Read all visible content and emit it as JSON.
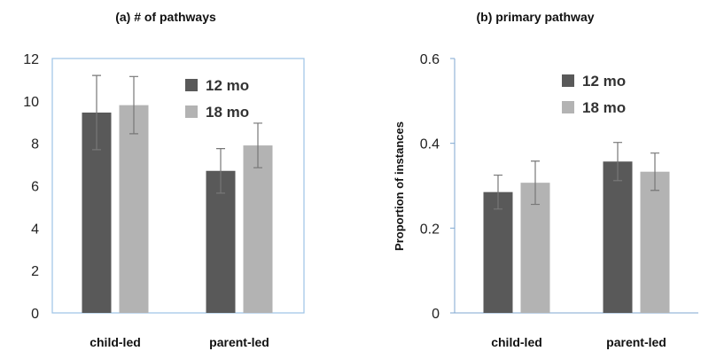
{
  "chart_data": [
    {
      "type": "bar",
      "title": "(a) # of pathways",
      "xlabel": "",
      "ylabel": "",
      "categories": [
        "child-led",
        "parent-led"
      ],
      "ylim": [
        0,
        12
      ],
      "yticks": [
        "0",
        "2",
        "4",
        "6",
        "8",
        "10",
        "12"
      ],
      "grid": false,
      "legend": "upper-right, inside plot",
      "series": [
        {
          "name": "12 mo",
          "color": "#595959",
          "values": [
            9.45,
            6.7
          ],
          "error": [
            1.75,
            1.05
          ]
        },
        {
          "name": "18 mo",
          "color": "#b3b3b3",
          "values": [
            9.8,
            7.9
          ],
          "error": [
            1.35,
            1.05
          ]
        }
      ]
    },
    {
      "type": "bar",
      "title": "(b) primary pathway",
      "xlabel": "",
      "ylabel": "Proportion of instances",
      "categories": [
        "child-led",
        "parent-led"
      ],
      "ylim": [
        0,
        0.6
      ],
      "yticks": [
        "0",
        "0.2",
        "0.4",
        "0.6"
      ],
      "grid": false,
      "legend": "upper-center, inside plot",
      "series": [
        {
          "name": "12 mo",
          "color": "#595959",
          "values": [
            0.285,
            0.357
          ],
          "error": [
            0.04,
            0.045
          ]
        },
        {
          "name": "18 mo",
          "color": "#b3b3b3",
          "values": [
            0.307,
            0.333
          ],
          "error": [
            0.051,
            0.044
          ]
        }
      ]
    }
  ]
}
